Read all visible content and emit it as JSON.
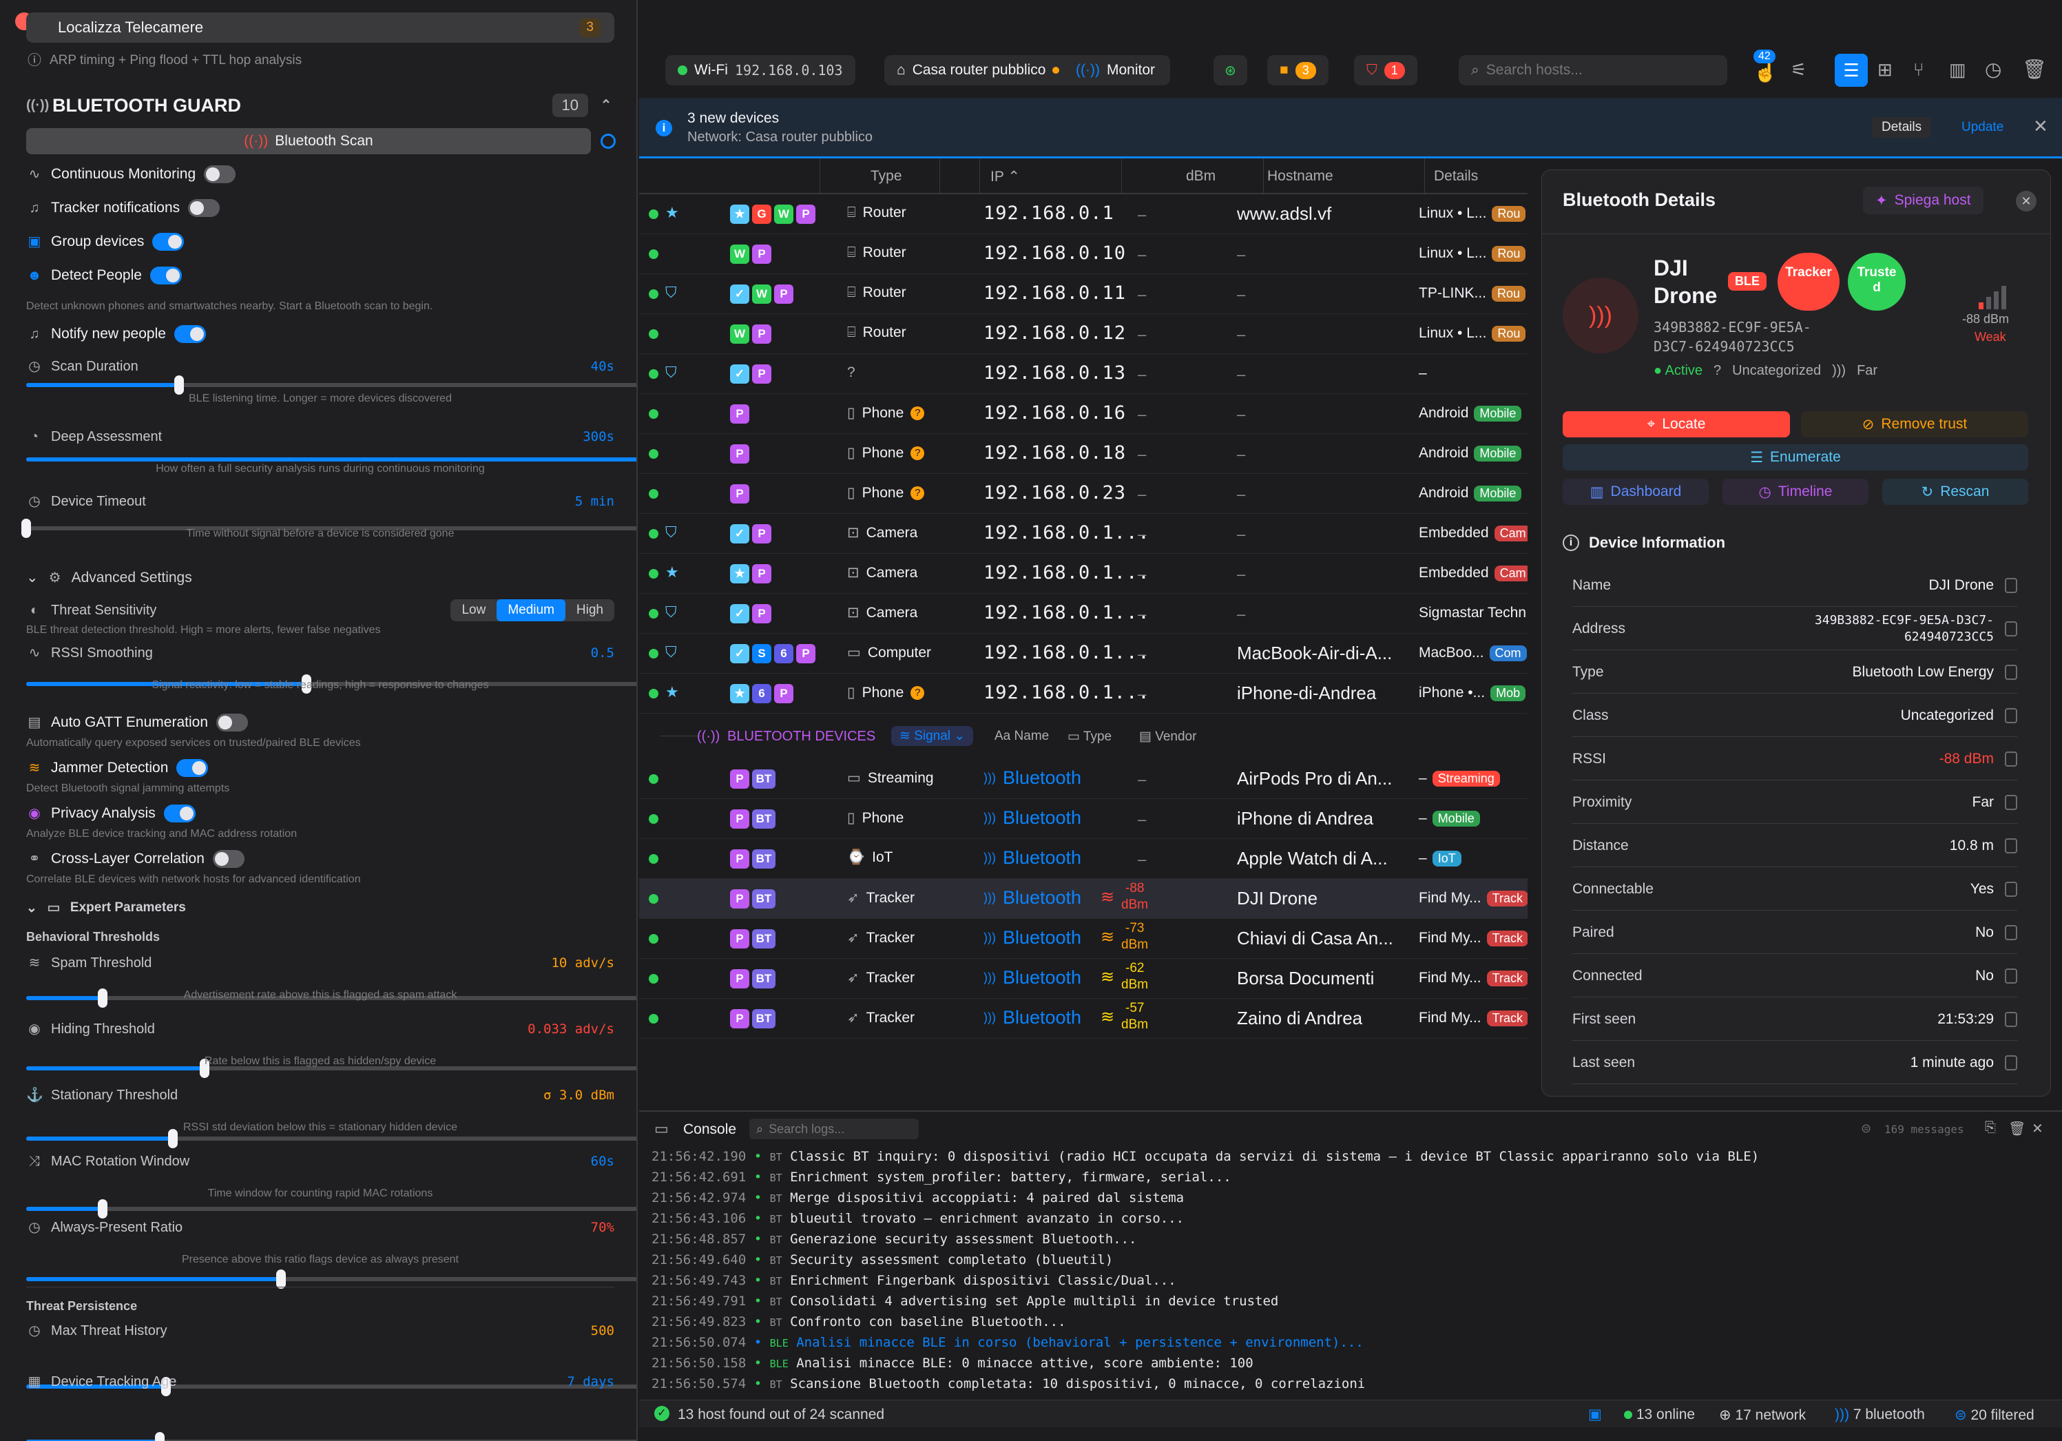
{
  "left": {
    "top_item": "Localizza Telecamere",
    "top_count": "3",
    "top_sub": "ARP timing + Ping flood + TTL hop analysis",
    "section_title": "BLUETOOTH GUARD",
    "section_count": "10",
    "scan_button": "Bluetooth Scan",
    "toggles": [
      {
        "label": "Continuous Monitoring",
        "on": false
      },
      {
        "label": "Tracker notifications",
        "on": false
      },
      {
        "label": "Group devices",
        "on": true
      },
      {
        "label": "Detect People",
        "on": true
      }
    ],
    "detect_note": "Detect unknown phones and smartwatches nearby. Start a Bluetooth scan to begin.",
    "notify_label": "Notify new people",
    "scan_duration": {
      "label": "Scan Duration",
      "value": "40s",
      "note": "BLE listening time. Longer = more devices discovered",
      "fill": 0.24
    },
    "deep": {
      "label": "Deep Assessment",
      "value": "300s",
      "note": "How often a full security analysis runs during continuous monitoring",
      "fill": 1.0
    },
    "timeout": {
      "label": "Device Timeout",
      "value": "5 min",
      "note": "Time without signal before a device is considered gone",
      "fill": 0.0
    },
    "advanced": "Advanced Settings",
    "threat_sens": {
      "label": "Threat Sensitivity",
      "options": [
        "Low",
        "Medium",
        "High"
      ],
      "note": "BLE threat detection threshold. High = more alerts, fewer false negatives"
    },
    "rssi": {
      "label": "RSSI Smoothing",
      "value": "0.5",
      "note": "Signal reactivity: low = stable readings, high = responsive to changes",
      "fill": 0.44
    },
    "gatt": {
      "label": "Auto GATT Enumeration",
      "note": "Automatically query exposed services on trusted/paired BLE devices"
    },
    "jammer": {
      "label": "Jammer Detection",
      "note": "Detect Bluetooth signal jamming attempts"
    },
    "privacy": {
      "label": "Privacy Analysis",
      "note": "Analyze BLE device tracking and MAC address rotation"
    },
    "cross": {
      "label": "Cross-Layer Correlation",
      "note": "Correlate BLE devices with network hosts for advanced identification"
    },
    "expert": "Expert Parameters",
    "behav": "Behavioral Thresholds",
    "spam": {
      "label": "Spam Threshold",
      "value": "10 adv/s",
      "note": "Advertisement rate above this is flagged as spam attack",
      "fill": 0.12
    },
    "hiding": {
      "label": "Hiding Threshold",
      "value": "0.033 adv/s",
      "note": "Rate below this is flagged as hidden/spy device",
      "fill": 0.28
    },
    "stationary": {
      "label": "Stationary Threshold",
      "value": "σ 3.0 dBm",
      "note": "RSSI std deviation below this = stationary hidden device",
      "fill": 0.23
    },
    "macrot": {
      "label": "MAC Rotation Window",
      "value": "60s",
      "note": "Time window for counting rapid MAC rotations",
      "fill": 0.12
    },
    "always": {
      "label": "Always-Present Ratio",
      "value": "70%",
      "note": "Presence above this ratio flags device as always present",
      "fill": 0.4
    },
    "persist": "Threat Persistence",
    "maxthreat": {
      "label": "Max Threat History",
      "value": "500",
      "fill": 0.22
    },
    "trackage": {
      "label": "Device Tracking Age",
      "value": "7 days",
      "fill": 0.21
    }
  },
  "toolbar": {
    "wifi": "Wi-Fi",
    "wifi_ip": "192.168.0.103",
    "network": "Casa router pubblico",
    "monitor": "Monitor",
    "cam_count": "3",
    "alert_count": "1",
    "search_placeholder": "Search hosts...",
    "notif_count": "42"
  },
  "banner": {
    "title": "3 new devices",
    "subtitle": "Network: Casa router pubblico",
    "details": "Details",
    "update": "Update"
  },
  "table": {
    "headers": [
      "Type",
      "IP",
      "dBm",
      "Hostname",
      "Details"
    ],
    "rows": [
      {
        "tags": [
          "★",
          "G",
          "W",
          "P"
        ],
        "type": "Router",
        "ip": "192.168.0.1",
        "dbm": "–",
        "host": "www.adsl.vf",
        "det": "Linux • L...",
        "chip": "Rou"
      },
      {
        "tags": [
          "W",
          "P"
        ],
        "type": "Router",
        "ip": "192.168.0.10",
        "dbm": "–",
        "host": "–",
        "det": "Linux • L...",
        "chip": "Rou"
      },
      {
        "tags": [
          "✓",
          "W",
          "P"
        ],
        "type": "Router",
        "ip": "192.168.0.11",
        "dbm": "–",
        "host": "–",
        "det": "TP-LINK...",
        "chip": "Rou"
      },
      {
        "tags": [
          "W",
          "P"
        ],
        "type": "Router",
        "ip": "192.168.0.12",
        "dbm": "–",
        "host": "–",
        "det": "Linux • L...",
        "chip": "Rou"
      },
      {
        "tags": [
          "✓",
          "P"
        ],
        "type": "",
        "ip": "192.168.0.13",
        "dbm": "–",
        "host": "–",
        "det": "–",
        "chip": ""
      },
      {
        "tags": [
          "P"
        ],
        "type": "Phone",
        "ip": "192.168.0.16",
        "dbm": "–",
        "host": "–",
        "det": "Android",
        "chip": "Mobile"
      },
      {
        "tags": [
          "P"
        ],
        "type": "Phone",
        "ip": "192.168.0.18",
        "dbm": "–",
        "host": "–",
        "det": "Android",
        "chip": "Mobile"
      },
      {
        "tags": [
          "P"
        ],
        "type": "Phone",
        "ip": "192.168.0.23",
        "dbm": "–",
        "host": "–",
        "det": "Android",
        "chip": "Mobile"
      },
      {
        "tags": [
          "✓",
          "P"
        ],
        "type": "Camera",
        "ip": "192.168.0.1...",
        "dbm": "–",
        "host": "–",
        "det": "Embedded",
        "chip": "Cam"
      },
      {
        "tags": [
          "★",
          "P"
        ],
        "type": "Camera",
        "ip": "192.168.0.1...",
        "dbm": "–",
        "host": "–",
        "det": "Embedded",
        "chip": "Cam"
      },
      {
        "tags": [
          "✓",
          "P"
        ],
        "type": "Camera",
        "ip": "192.168.0.1...",
        "dbm": "–",
        "host": "–",
        "det": "Sigmastar Techn",
        "chip": ""
      },
      {
        "tags": [
          "✓",
          "S",
          "6",
          "P"
        ],
        "type": "Computer",
        "ip": "192.168.0.1...",
        "dbm": "–",
        "host": "MacBook-Air-di-A...",
        "det": "MacBoo...",
        "chip": "Com"
      },
      {
        "tags": [
          "★",
          "6",
          "P"
        ],
        "type": "Phone",
        "ip": "192.168.0.1...",
        "dbm": "–",
        "host": "iPhone-di-Andrea",
        "det": "iPhone •...",
        "chip": "Mob"
      }
    ],
    "bt_header": "BLUETOOTH DEVICES",
    "bt_sort": "Signal",
    "bt_cols": [
      "Name",
      "Type",
      "Vendor"
    ],
    "bt_rows": [
      {
        "type": "Streaming",
        "proto": "Bluetooth",
        "dbm": "–",
        "dbm_unit": "",
        "host": "AirPods Pro di An...",
        "det": "–",
        "chip": "Streaming"
      },
      {
        "type": "Phone",
        "proto": "Bluetooth",
        "dbm": "–",
        "dbm_unit": "",
        "host": "iPhone di Andrea",
        "det": "–",
        "chip": "Mobile"
      },
      {
        "type": "IoT",
        "proto": "Bluetooth",
        "dbm": "–",
        "dbm_unit": "",
        "host": "Apple Watch di A...",
        "det": "–",
        "chip": "IoT"
      },
      {
        "type": "Tracker",
        "proto": "Bluetooth",
        "dbm": "-88",
        "dbm_unit": "dBm",
        "host": "DJI Drone",
        "det": "Find My...",
        "chip": "Track"
      },
      {
        "type": "Tracker",
        "proto": "Bluetooth",
        "dbm": "-73",
        "dbm_unit": "dBm",
        "host": "Chiavi di Casa An...",
        "det": "Find My...",
        "chip": "Track"
      },
      {
        "type": "Tracker",
        "proto": "Bluetooth",
        "dbm": "-62",
        "dbm_unit": "dBm",
        "host": "Borsa Documenti",
        "det": "Find My...",
        "chip": "Track"
      },
      {
        "type": "Tracker",
        "proto": "Bluetooth",
        "dbm": "-57",
        "dbm_unit": "dBm",
        "host": "Zaino di Andrea",
        "det": "Find My...",
        "chip": "Track"
      }
    ]
  },
  "details": {
    "title": "Bluetooth Details",
    "explain": "Spiega host",
    "name1": "DJI",
    "name2": "Drone",
    "ble": "BLE",
    "tracker": "Tracker",
    "trusted": "Trusted",
    "addr1": "349B3882-EC9F-9E5A-",
    "addr2": "D3C7-624940723CC5",
    "rssi": "-88 dBm",
    "strength": "Weak",
    "status": "Active",
    "class": "Uncategorized",
    "proximity": "Far",
    "locate": "Locate",
    "remove_trust": "Remove trust",
    "enumerate": "Enumerate",
    "dashboard": "Dashboard",
    "timeline": "Timeline",
    "rescan": "Rescan",
    "info_title": "Device Information",
    "info": [
      {
        "k": "Name",
        "v": "DJI Drone"
      },
      {
        "k": "Address",
        "v": "349B3882-EC9F-9E5A-D3C7-624940723CC5"
      },
      {
        "k": "Type",
        "v": "Bluetooth Low Energy"
      },
      {
        "k": "Class",
        "v": "Uncategorized"
      },
      {
        "k": "RSSI",
        "v": "-88 dBm"
      },
      {
        "k": "Proximity",
        "v": "Far"
      },
      {
        "k": "Distance",
        "v": "10.8 m"
      },
      {
        "k": "Connectable",
        "v": "Yes"
      },
      {
        "k": "Paired",
        "v": "No"
      },
      {
        "k": "Connected",
        "v": "No"
      },
      {
        "k": "First seen",
        "v": "21:53:29"
      },
      {
        "k": "Last seen",
        "v": "1 minute ago"
      }
    ]
  },
  "console": {
    "title": "Console",
    "search_placeholder": "Search logs...",
    "count": "169 messages",
    "logs": [
      {
        "t": "21:56:42.190",
        "s": "BT",
        "m": "Classic BT inquiry: 0 dispositivi (radio HCI occupata da servizi di sistema — i device BT Classic appariranno solo via BLE)",
        "blue": false
      },
      {
        "t": "21:56:42.691",
        "s": "BT",
        "m": "Enrichment system_profiler: battery, firmware, serial...",
        "blue": false
      },
      {
        "t": "21:56:42.974",
        "s": "BT",
        "m": "Merge dispositivi accoppiati: 4 paired dal sistema",
        "blue": false
      },
      {
        "t": "21:56:43.106",
        "s": "BT",
        "m": "blueutil trovato — enrichment avanzato in corso...",
        "blue": false
      },
      {
        "t": "21:56:48.857",
        "s": "BT",
        "m": "Generazione security assessment Bluetooth...",
        "blue": false
      },
      {
        "t": "21:56:49.640",
        "s": "BT",
        "m": "Security assessment completato (blueutil)",
        "blue": false
      },
      {
        "t": "21:56:49.743",
        "s": "BT",
        "m": "Enrichment Fingerbank dispositivi Classic/Dual...",
        "blue": false
      },
      {
        "t": "21:56:49.791",
        "s": "BT",
        "m": "Consolidati 4 advertising set Apple multipli in device trusted",
        "blue": false
      },
      {
        "t": "21:56:49.823",
        "s": "BT",
        "m": "Confronto con baseline Bluetooth...",
        "blue": false
      },
      {
        "t": "21:56:50.074",
        "s": "BLE",
        "m": "Analisi minacce BLE in corso (behavioral + persistence + environment)...",
        "blue": true
      },
      {
        "t": "21:56:50.158",
        "s": "BLE",
        "m": "Analisi minacce BLE: 0 minacce attive, score ambiente: 100",
        "blue": false
      },
      {
        "t": "21:56:50.574",
        "s": "BT",
        "m": "Scansione Bluetooth completata: 10 dispositivi, 0 minacce, 0 correlazioni",
        "blue": false
      }
    ]
  },
  "status": {
    "found": "13 host found out of 24 scanned",
    "online": "13 online",
    "network": "17 network",
    "bluetooth": "7 bluetooth",
    "filtered": "20 filtered"
  },
  "colors": {
    "accent": "#0a84ff",
    "danger": "#ff453a",
    "ok": "#30d158",
    "warn": "#ff9f0a"
  }
}
